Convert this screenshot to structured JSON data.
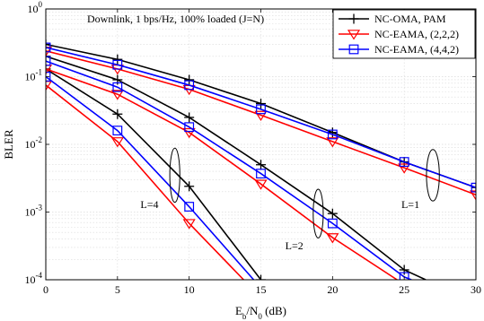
{
  "chart_data": {
    "type": "line",
    "title": "Downlink, 1 bps/Hz, 100% loaded (J=N)",
    "xlabel_main": "E",
    "xlabel_sub1": "b",
    "xlabel_mid": "/N",
    "xlabel_sub2": "0",
    "xlabel_tail": " (dB)",
    "ylabel": "BLER",
    "xlim": [
      0,
      30
    ],
    "ylim": [
      0.0001,
      1
    ],
    "yscale": "log",
    "grid": true,
    "legend_position": "top-right",
    "x_ticks": [
      "0",
      "5",
      "10",
      "15",
      "20",
      "25",
      "30"
    ],
    "y_ticks": [
      {
        "base": "10",
        "exp": "0"
      },
      {
        "base": "10",
        "exp": "-1"
      },
      {
        "base": "10",
        "exp": "-2"
      },
      {
        "base": "10",
        "exp": "-3"
      },
      {
        "base": "10",
        "exp": "-4"
      }
    ],
    "series": [
      {
        "name": "NC-OMA, PAM",
        "color": "#000000",
        "marker": "plus",
        "groups": [
          {
            "x": [
              0,
              5,
              10,
              15,
              20,
              25,
              30
            ],
            "y": [
              0.3,
              0.18,
              0.09,
              0.04,
              0.015,
              0.0055,
              0.0023
            ]
          },
          {
            "x": [
              0,
              5,
              10,
              15,
              20,
              25,
              26.5
            ],
            "y": [
              0.2,
              0.09,
              0.025,
              0.005,
              0.00095,
              0.00014,
              0.0001
            ]
          },
          {
            "x": [
              0,
              5,
              10,
              15
            ],
            "y": [
              0.13,
              0.028,
              0.0024,
              0.0001
            ]
          }
        ]
      },
      {
        "name": "NC-EAMA, (2,2,2)",
        "color": "#ff0000",
        "marker": "triangle-down",
        "groups": [
          {
            "x": [
              0,
              5,
              10,
              15,
              20,
              25,
              30
            ],
            "y": [
              0.24,
              0.13,
              0.065,
              0.027,
              0.011,
              0.0045,
              0.0018
            ]
          },
          {
            "x": [
              0,
              5,
              10,
              15,
              20,
              24.5
            ],
            "y": [
              0.13,
              0.055,
              0.015,
              0.0026,
              0.00042,
              0.0001
            ]
          },
          {
            "x": [
              0,
              5,
              10,
              13.8
            ],
            "y": [
              0.075,
              0.011,
              0.00068,
              0.0001
            ]
          }
        ]
      },
      {
        "name": "NC-EAMA, (4,4,2)",
        "color": "#0000ff",
        "marker": "square",
        "groups": [
          {
            "x": [
              0,
              5,
              10,
              15,
              20,
              25,
              30
            ],
            "y": [
              0.27,
              0.15,
              0.075,
              0.033,
              0.014,
              0.0055,
              0.0023
            ]
          },
          {
            "x": [
              0,
              5,
              10,
              15,
              20,
              25,
              25.5
            ],
            "y": [
              0.17,
              0.07,
              0.018,
              0.0037,
              0.00068,
              0.00011,
              0.0001
            ]
          },
          {
            "x": [
              0,
              5,
              10,
              14.5
            ],
            "y": [
              0.1,
              0.016,
              0.0012,
              0.0001
            ]
          }
        ]
      }
    ],
    "annotations": [
      {
        "label": "L=1",
        "x": 24.8,
        "y": 0.00115,
        "ellipse_x": 27,
        "ellipse_y": 0.0035,
        "rx": 0.45,
        "ry_decades": 0.38
      },
      {
        "label": "L=2",
        "x": 16.7,
        "y": 0.00028,
        "ellipse_x": 19,
        "ellipse_y": 0.00095,
        "rx": 0.35,
        "ry_decades": 0.36
      },
      {
        "label": "L=4",
        "x": 6.6,
        "y": 0.00115,
        "ellipse_x": 9,
        "ellipse_y": 0.0035,
        "rx": 0.35,
        "ry_decades": 0.4
      }
    ]
  }
}
